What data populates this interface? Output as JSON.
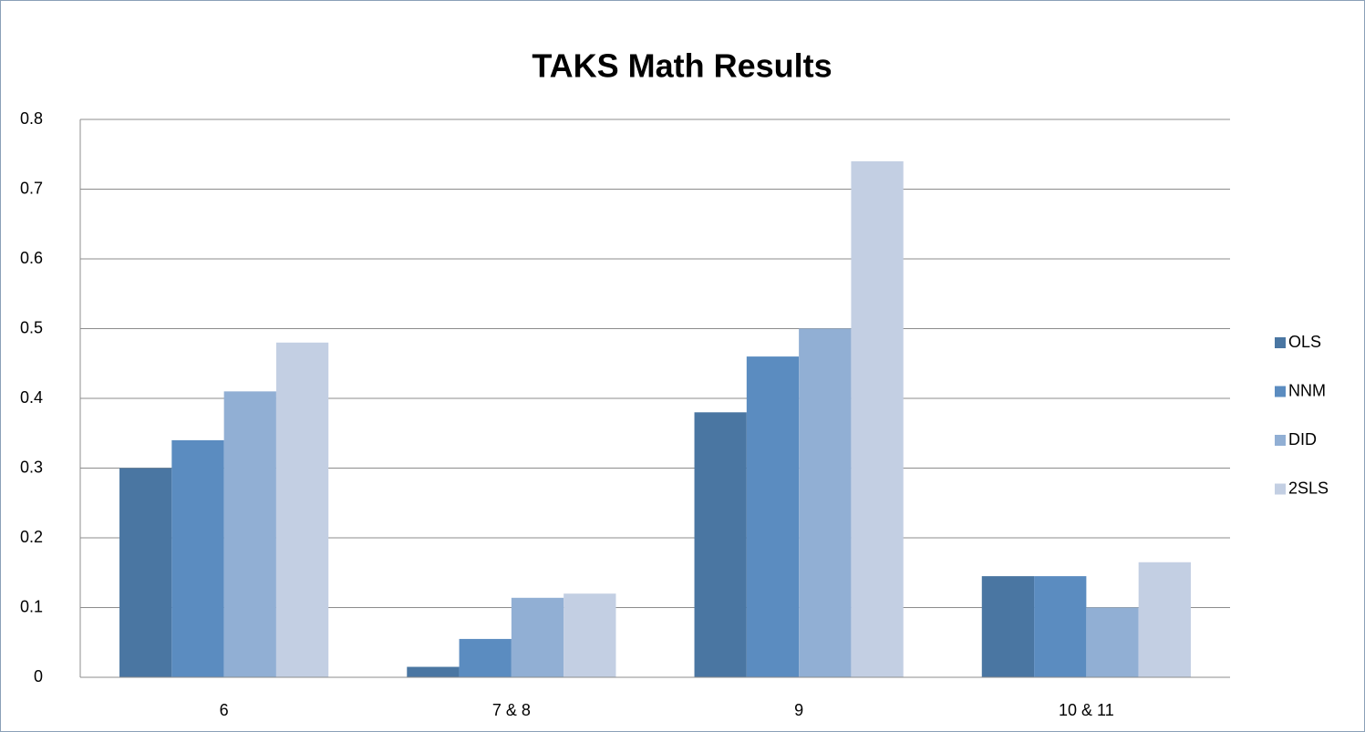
{
  "chart_data": {
    "type": "bar",
    "title": "TAKS Math Results",
    "categories": [
      "6",
      "7 & 8",
      "9",
      "10 & 11"
    ],
    "series": [
      {
        "name": "OLS",
        "color": "#4a76a2",
        "values": [
          0.3,
          0.015,
          0.38,
          0.145
        ]
      },
      {
        "name": "NNM",
        "color": "#5b8cc0",
        "values": [
          0.34,
          0.055,
          0.46,
          0.145
        ]
      },
      {
        "name": "DID",
        "color": "#91afd4",
        "values": [
          0.41,
          0.114,
          0.5,
          0.1
        ]
      },
      {
        "name": "2SLS",
        "color": "#c3cfe3",
        "values": [
          0.48,
          0.12,
          0.74,
          0.165
        ]
      }
    ],
    "ylim": [
      0,
      0.8
    ],
    "yticks": [
      0,
      0.1,
      0.2,
      0.3,
      0.4,
      0.5,
      0.6,
      0.7,
      0.8
    ],
    "grid": true,
    "legend": "right"
  }
}
